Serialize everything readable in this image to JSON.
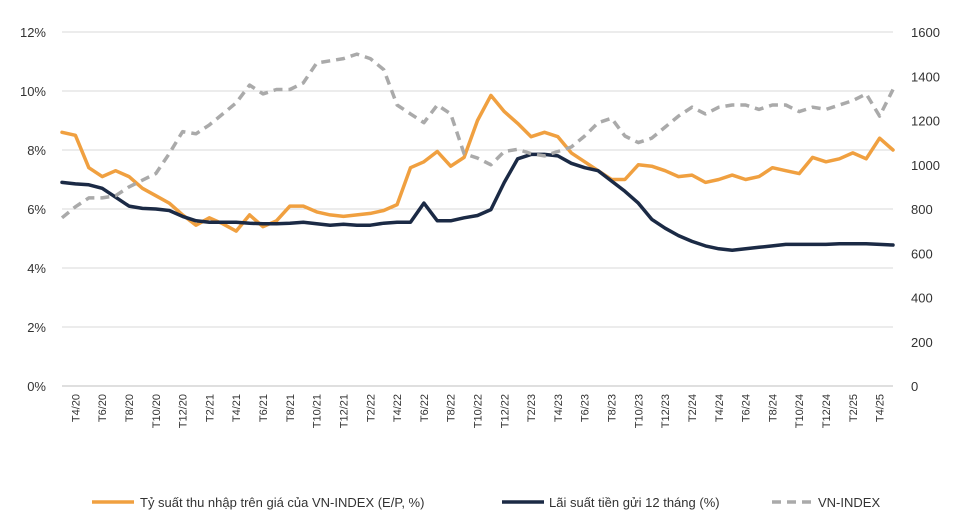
{
  "chart_data": {
    "type": "line",
    "title": "",
    "y_left": {
      "min": 0,
      "max": 12,
      "step": 2,
      "tick_labels": [
        "0%",
        "2%",
        "4%",
        "6%",
        "8%",
        "10%",
        "12%"
      ]
    },
    "y_right": {
      "min": 0,
      "max": 1600,
      "step": 200,
      "tick_labels": [
        "0",
        "200",
        "400",
        "600",
        "800",
        "1000",
        "1200",
        "1400",
        "1600"
      ]
    },
    "x_labels": [
      "T4/20",
      "T6/20",
      "T8/20",
      "T10/20",
      "T12/20",
      "T2/21",
      "T4/21",
      "T6/21",
      "T8/21",
      "T10/21",
      "T12/21",
      "T2/22",
      "T4/22",
      "T6/22",
      "T8/22",
      "T10/22",
      "T12/22",
      "T2/23",
      "T4/23",
      "T6/23",
      "T8/23",
      "T10/23",
      "T12/23",
      "T2/24",
      "T4/24",
      "T6/24",
      "T8/24",
      "T10/24",
      "T12/24",
      "T2/25",
      "T4/25"
    ],
    "grid": "horizontal",
    "legend": "bottom",
    "series": [
      {
        "name": "Tỷ suất thu nhập trên giá của VN-INDEX (E/P, %)",
        "axis": "left",
        "color": "#F0A040",
        "style": "solid",
        "values": [
          8.6,
          8.5,
          7.4,
          7.1,
          7.3,
          7.1,
          6.7,
          6.45,
          6.2,
          5.8,
          5.45,
          5.7,
          5.5,
          5.25,
          5.8,
          5.4,
          5.6,
          6.1,
          6.1,
          5.9,
          5.8,
          5.75,
          5.8,
          5.85,
          5.95,
          6.15,
          7.4,
          7.6,
          7.95,
          7.45,
          7.75,
          9.0,
          9.85,
          9.3,
          8.9,
          8.45,
          8.6,
          8.45,
          7.9,
          7.6,
          7.3,
          7.0,
          7.0,
          7.5,
          7.45,
          7.3,
          7.1,
          7.15,
          6.9,
          7.0,
          7.15,
          7.0,
          7.1,
          7.4,
          7.3,
          7.2,
          7.75,
          7.6,
          7.7,
          7.9,
          7.7,
          8.4,
          8.0
        ]
      },
      {
        "name": "Lãi suất tiền gửi 12 tháng (%)",
        "axis": "left",
        "color": "#1B2A45",
        "style": "solid",
        "values": [
          6.9,
          6.85,
          6.82,
          6.7,
          6.4,
          6.1,
          6.02,
          6.0,
          5.95,
          5.75,
          5.6,
          5.55,
          5.55,
          5.55,
          5.52,
          5.5,
          5.5,
          5.52,
          5.55,
          5.5,
          5.45,
          5.48,
          5.45,
          5.45,
          5.52,
          5.55,
          5.55,
          6.2,
          5.6,
          5.6,
          5.7,
          5.78,
          5.98,
          6.9,
          7.7,
          7.85,
          7.85,
          7.8,
          7.55,
          7.4,
          7.3,
          6.95,
          6.6,
          6.2,
          5.65,
          5.35,
          5.1,
          4.9,
          4.75,
          4.65,
          4.6,
          4.65,
          4.7,
          4.75,
          4.8,
          4.8,
          4.8,
          4.8,
          4.82,
          4.82,
          4.82,
          4.8,
          4.78
        ]
      },
      {
        "name": "VN-INDEX",
        "axis": "right",
        "color": "#AAAAAA",
        "style": "dashed",
        "values": [
          760,
          810,
          850,
          850,
          860,
          900,
          930,
          960,
          1050,
          1150,
          1140,
          1180,
          1230,
          1280,
          1360,
          1320,
          1340,
          1340,
          1370,
          1460,
          1470,
          1480,
          1500,
          1480,
          1430,
          1270,
          1230,
          1190,
          1270,
          1230,
          1050,
          1030,
          1000,
          1060,
          1070,
          1050,
          1040,
          1060,
          1080,
          1130,
          1190,
          1210,
          1130,
          1100,
          1120,
          1170,
          1220,
          1260,
          1230,
          1260,
          1270,
          1270,
          1250,
          1270,
          1270,
          1240,
          1260,
          1250,
          1270,
          1290,
          1320,
          1220,
          1340
        ]
      }
    ]
  }
}
